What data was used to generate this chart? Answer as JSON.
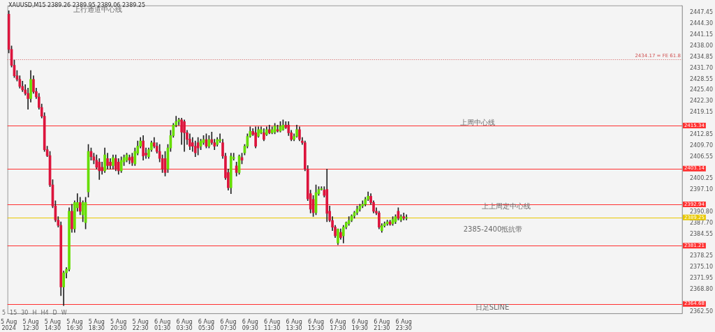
{
  "chart_data": {
    "type": "candlestick",
    "categories": [
      "5 Aug 2024",
      null,
      null,
      null,
      null,
      null,
      null,
      null,
      "5 Aug 12:30",
      null,
      null,
      null,
      null,
      null,
      null,
      null,
      "5 Aug 14:30",
      null,
      null,
      null,
      null,
      null,
      null,
      null,
      "5 Aug 16:30",
      null,
      null,
      null,
      null,
      null,
      null,
      null,
      "5 Aug 18:30",
      null,
      null,
      null,
      null,
      null,
      null,
      null,
      "5 Aug 20:30",
      null,
      null,
      null,
      null,
      null,
      null,
      null,
      "5 Aug 22:30",
      null,
      null,
      null,
      null,
      null,
      null,
      null,
      "6 Aug 01:30",
      null,
      null,
      null,
      null,
      null,
      null,
      null,
      "6 Aug 03:30",
      null,
      null,
      null,
      null,
      null,
      null,
      null,
      "6 Aug 05:30",
      null,
      null,
      null,
      null,
      null,
      null,
      null,
      "6 Aug 07:30",
      null,
      null,
      null,
      null,
      null,
      null,
      null,
      "6 Aug 09:30",
      null,
      null,
      null,
      null,
      null,
      null,
      null,
      "6 Aug 11:30",
      null,
      null,
      null,
      null,
      null,
      null,
      null,
      "6 Aug 13:30",
      null,
      null,
      null,
      null,
      null,
      null,
      null,
      "6 Aug 15:30",
      null,
      null,
      null,
      null,
      null,
      null,
      null,
      "6 Aug 17:30",
      null,
      null,
      null,
      null,
      null,
      null,
      null,
      "6 Aug 19:30",
      null,
      null,
      null,
      null,
      null,
      null,
      null,
      "6 Aug 21:30",
      null,
      null,
      null,
      null,
      null,
      null,
      null,
      "6 Aug 23:30",
      null,
      null,
      null,
      null,
      null,
      null,
      null,
      null,
      null,
      null,
      null,
      null,
      null,
      null,
      null,
      null,
      null,
      null,
      null,
      null,
      null,
      null,
      null,
      null,
      null,
      null,
      null,
      null,
      null,
      null,
      null,
      null,
      null,
      null,
      null,
      null,
      null,
      null,
      null,
      null,
      null,
      null,
      null,
      null,
      null,
      null,
      null,
      null,
      null,
      null,
      null,
      null,
      null,
      null,
      null,
      null,
      null,
      null,
      null,
      null,
      null,
      null,
      null,
      null,
      null,
      null,
      null,
      null,
      null,
      null,
      null,
      null,
      null,
      null,
      null,
      null,
      null,
      null,
      null,
      null,
      null,
      null,
      null,
      null,
      null,
      null,
      null,
      null,
      null,
      null,
      null,
      null,
      null,
      null,
      null,
      null,
      null,
      null,
      null,
      null,
      null
    ],
    "ohlc": [
      [
        2447,
        2448,
        2436,
        2437
      ],
      [
        2437,
        2438,
        2432,
        2432.5
      ],
      [
        2432.5,
        2434,
        2429,
        2429.5
      ],
      [
        2429.5,
        2431,
        2428,
        2428.5
      ],
      [
        2428.5,
        2429.5,
        2426,
        2426.5
      ],
      [
        2426.5,
        2428,
        2425,
        2425.5
      ],
      [
        2425.5,
        2427,
        2424,
        2424.5
      ],
      [
        2424.5,
        2426,
        2420,
        2423
      ],
      [
        2423,
        2431,
        2422,
        2428.5
      ],
      [
        2428.5,
        2429.5,
        2424.5,
        2425
      ],
      [
        2425,
        2426,
        2423,
        2423.5
      ],
      [
        2423.5,
        2424.5,
        2420,
        2420.5
      ],
      [
        2420.5,
        2421.5,
        2417.5,
        2418
      ],
      [
        2418,
        2419,
        2408,
        2408.5
      ],
      [
        2408.5,
        2409.5,
        2406.5,
        2406.8
      ],
      [
        2406.8,
        2408,
        2398,
        2398.5
      ],
      [
        2398.5,
        2400,
        2392,
        2392.5
      ],
      [
        2392.5,
        2394,
        2388,
        2388.5
      ],
      [
        2388.5,
        2389.5,
        2386.5,
        2387
      ],
      [
        2387,
        2388,
        2367,
        2369.5
      ],
      [
        2369.5,
        2374,
        2364.2,
        2373.5
      ],
      [
        2373.5,
        2375,
        2372,
        2374.5
      ],
      [
        2374.5,
        2392,
        2374,
        2391
      ],
      [
        2391,
        2393,
        2385,
        2386
      ],
      [
        2386,
        2394,
        2385,
        2393.5
      ],
      [
        2392,
        2396,
        2391,
        2393.5
      ],
      [
        2393.5,
        2395,
        2390,
        2391
      ],
      [
        2390,
        2394,
        2388,
        2393.5
      ],
      [
        2387.8,
        2395,
        2386,
        2393.5
      ],
      [
        2396.5,
        2410,
        2395,
        2408
      ],
      [
        2408,
        2409,
        2405.5,
        2406.5
      ],
      [
        2406.5,
        2407.5,
        2404.5,
        2405.5
      ],
      [
        2405.5,
        2407,
        2403,
        2403.5
      ],
      [
        2405,
        2406,
        2400,
        2402.5
      ],
      [
        2403.5,
        2405,
        2401.5,
        2402.5
      ],
      [
        2402.5,
        2409,
        2402,
        2407
      ],
      [
        2406,
        2407.5,
        2403,
        2404
      ],
      [
        2405,
        2406,
        2403,
        2404
      ],
      [
        2404,
        2407,
        2403,
        2406.3
      ],
      [
        2406,
        2407,
        2402.5,
        2403
      ],
      [
        2405,
        2406,
        2401.5,
        2402.5
      ],
      [
        2402.5,
        2406.5,
        2402,
        2405.5
      ],
      [
        2405,
        2407,
        2404,
        2406.3
      ],
      [
        2405.5,
        2407.5,
        2405,
        2407
      ],
      [
        2406.3,
        2407,
        2404.5,
        2405.5
      ],
      [
        2406.5,
        2407.5,
        2404,
        2404.8
      ],
      [
        2404.5,
        2409,
        2404,
        2408
      ],
      [
        2407.5,
        2411,
        2407,
        2409.5
      ],
      [
        2409.5,
        2412,
        2409,
        2411
      ],
      [
        2411,
        2412.5,
        2405.5,
        2406.7
      ],
      [
        2407.5,
        2409,
        2406,
        2407
      ],
      [
        2406.5,
        2409,
        2406,
        2408.5
      ],
      [
        2408.5,
        2411,
        2408,
        2410.5
      ],
      [
        2410.5,
        2412,
        2409,
        2409.5
      ],
      [
        2409.5,
        2410.5,
        2407.5,
        2408
      ],
      [
        2408,
        2410,
        2405,
        2406
      ],
      [
        2406,
        2407,
        2402,
        2403
      ],
      [
        2406,
        2408,
        2401,
        2402
      ],
      [
        2403,
        2410,
        2402,
        2409
      ],
      [
        2409,
        2414,
        2408,
        2412.5
      ],
      [
        2412.5,
        2416,
        2412,
        2415.5
      ],
      [
        2415.5,
        2418,
        2415,
        2416.5
      ],
      [
        2416.5,
        2417.5,
        2415.5,
        2417
      ],
      [
        2417,
        2417.5,
        2410,
        2413.5
      ],
      [
        2416.5,
        2417,
        2408,
        2413.3
      ],
      [
        2413.3,
        2414,
        2410,
        2411.4
      ],
      [
        2411.5,
        2413,
        2408.5,
        2409.5
      ],
      [
        2410.5,
        2412,
        2408,
        2409.5
      ],
      [
        2409.5,
        2411,
        2406.5,
        2407.6
      ],
      [
        2410.5,
        2412,
        2407,
        2409
      ],
      [
        2409.5,
        2411.5,
        2408.5,
        2411
      ],
      [
        2410.5,
        2412.5,
        2410,
        2411.4
      ],
      [
        2411.4,
        2413,
        2409,
        2409.5
      ],
      [
        2409.5,
        2412.5,
        2409,
        2411.4
      ],
      [
        2411.4,
        2413.5,
        2410,
        2410.5
      ],
      [
        2410.5,
        2411.5,
        2408.5,
        2409.5
      ],
      [
        2410,
        2412,
        2409.5,
        2411.4
      ],
      [
        2411,
        2413,
        2410.5,
        2411.4
      ],
      [
        2410.5,
        2411.5,
        2406,
        2406.7
      ],
      [
        2406.7,
        2407.5,
        2400,
        2400.5
      ],
      [
        2402,
        2403,
        2397,
        2397.7
      ],
      [
        2397.7,
        2407.5,
        2396,
        2406.7
      ],
      [
        2406,
        2407.5,
        2405.5,
        2406.3
      ],
      [
        2403.9,
        2405,
        2401,
        2402
      ],
      [
        2402,
        2407,
        2401.5,
        2406.7
      ],
      [
        2406.3,
        2407.5,
        2404.5,
        2405.5
      ],
      [
        2407.6,
        2410,
        2407,
        2409.5
      ],
      [
        2409.5,
        2413,
        2409,
        2412.3
      ],
      [
        2412.3,
        2415,
        2412,
        2413.7
      ],
      [
        2413.7,
        2414.5,
        2412.5,
        2412.8
      ],
      [
        2413.3,
        2415,
        2409,
        2409.5
      ],
      [
        2412.3,
        2415,
        2412,
        2414.2
      ],
      [
        2413.3,
        2415,
        2413,
        2414.2
      ],
      [
        2413.3,
        2414.5,
        2411,
        2411.4
      ],
      [
        2412.8,
        2415,
        2412.5,
        2414.2
      ],
      [
        2414.2,
        2415.5,
        2413,
        2413.3
      ],
      [
        2413.3,
        2415,
        2413,
        2414.2
      ],
      [
        2413.5,
        2416,
        2413,
        2415.2
      ],
      [
        2414.2,
        2415.5,
        2413.5,
        2413.8
      ],
      [
        2413.8,
        2416.5,
        2413.5,
        2415.2
      ],
      [
        2414.2,
        2417,
        2414,
        2415.5
      ],
      [
        2415.5,
        2416.5,
        2414.5,
        2414.8
      ],
      [
        2415.5,
        2416.5,
        2412.5,
        2413.3
      ],
      [
        2413.3,
        2414,
        2411,
        2411.4
      ],
      [
        2411.4,
        2413,
        2411,
        2412.3
      ],
      [
        2412.3,
        2415.5,
        2412,
        2414.2
      ],
      [
        2414.2,
        2415,
        2411,
        2411.4
      ],
      [
        2411,
        2412,
        2410,
        2410.5
      ],
      [
        2410.5,
        2411,
        2402.5,
        2403
      ],
      [
        2403,
        2404,
        2394,
        2394.5
      ],
      [
        2396,
        2397,
        2390.5,
        2391.6
      ],
      [
        2394.4,
        2395.5,
        2389.5,
        2390.6
      ],
      [
        2390.6,
        2398.5,
        2390,
        2396.3
      ],
      [
        2396,
        2398,
        2395.5,
        2397.2
      ],
      [
        2397.2,
        2398,
        2397,
        2397.4
      ],
      [
        2397,
        2398,
        2395,
        2395.5
      ],
      [
        2397.2,
        2403,
        2388,
        2390.4
      ],
      [
        2391,
        2392.5,
        2388,
        2388.4
      ],
      [
        2388.4,
        2389.5,
        2385.5,
        2386.5
      ],
      [
        2386.5,
        2387,
        2383.5,
        2384
      ],
      [
        2382,
        2386,
        2381.5,
        2385.9
      ],
      [
        2385,
        2386,
        2383,
        2383.5
      ],
      [
        2384,
        2387,
        2382,
        2386.5
      ],
      [
        2386.5,
        2388,
        2386,
        2387.8
      ],
      [
        2387.5,
        2389.5,
        2387,
        2388.4
      ],
      [
        2388.4,
        2390,
        2388,
        2389.7
      ],
      [
        2389.7,
        2391,
        2389,
        2390.6
      ],
      [
        2390.6,
        2392.5,
        2390,
        2391.6
      ],
      [
        2391.6,
        2393,
        2391,
        2392.5
      ],
      [
        2392.5,
        2394,
        2392,
        2393
      ],
      [
        2393,
        2395,
        2392.5,
        2394.4
      ],
      [
        2394.4,
        2396.5,
        2394,
        2395.3
      ],
      [
        2395.3,
        2396,
        2393,
        2393.5
      ],
      [
        2393.5,
        2394,
        2390.5,
        2391
      ],
      [
        2391,
        2392,
        2390,
        2390.5
      ],
      [
        2390.5,
        2391,
        2386,
        2386.5
      ],
      [
        2385.5,
        2387.5,
        2385,
        2386.9
      ],
      [
        2386.9,
        2388,
        2386.5,
        2387.5
      ],
      [
        2387.5,
        2388.5,
        2387,
        2388
      ],
      [
        2388,
        2388.5,
        2387,
        2387.3
      ],
      [
        2387.5,
        2389.5,
        2387,
        2388.7
      ],
      [
        2388,
        2390,
        2387.5,
        2389.5
      ],
      [
        2391,
        2392,
        2388.5,
        2389
      ],
      [
        2388.5,
        2390,
        2388,
        2389.5
      ],
      [
        2389.5,
        2390.5,
        2388.5,
        2389
      ],
      [
        2389,
        2390,
        2388.5,
        2389.25
      ],
      null,
      null,
      null,
      null,
      null,
      null,
      null,
      null,
      null,
      null,
      null,
      null,
      null,
      null,
      null,
      null,
      null,
      null,
      null,
      null,
      null,
      null,
      null,
      null,
      null,
      null,
      null,
      null,
      null,
      null,
      null,
      null,
      null,
      null,
      null,
      null,
      null,
      null,
      null,
      null,
      null,
      null,
      null,
      null,
      null,
      null,
      null,
      null,
      null,
      null,
      null,
      null,
      null,
      null,
      null,
      null,
      null,
      null,
      null,
      null,
      null,
      null,
      null,
      null,
      null,
      null,
      null,
      null,
      null,
      null,
      null,
      null,
      null,
      null,
      null,
      null,
      null,
      null,
      null,
      null,
      null,
      null,
      null,
      null,
      null,
      null,
      null,
      null,
      null,
      null,
      null,
      null,
      null,
      null,
      null,
      null,
      null,
      null,
      null,
      null
    ],
    "ylim": [
      2362.0,
      2449.5
    ],
    "yticks": [
      {
        "value": 2447.45,
        "label": "2447.45"
      },
      {
        "value": 2444.3,
        "label": "2444.30"
      },
      {
        "value": 2441.15,
        "label": "2441.15"
      },
      {
        "value": 2438,
        "label": "2438.00"
      },
      {
        "value": 2434.85,
        "label": "2434.85"
      },
      {
        "value": 2431.7,
        "label": "2431.70"
      },
      {
        "value": 2428.55,
        "label": "2428.55"
      },
      {
        "value": 2425.4,
        "label": "2425.40"
      },
      {
        "value": 2422.3,
        "label": "2422.30"
      },
      {
        "value": 2419.15,
        "label": "2419.15"
      },
      {
        "value": 2412.85,
        "label": "2412.85"
      },
      {
        "value": 2409.7,
        "label": "2409.70"
      },
      {
        "value": 2406.55,
        "label": "2406.55"
      },
      {
        "value": 2400.25,
        "label": "2400.25"
      },
      {
        "value": 2397.1,
        "label": "2397.10"
      },
      {
        "value": 2390.8,
        "label": "2390.80"
      },
      {
        "value": 2387.7,
        "label": "2387.70"
      },
      {
        "value": 2384.55,
        "label": "2384.55"
      },
      {
        "value": 2378.25,
        "label": "2378.25"
      },
      {
        "value": 2375.1,
        "label": "2375.10"
      },
      {
        "value": 2371.95,
        "label": "2371.95"
      },
      {
        "value": 2368.8,
        "label": "2368.80"
      },
      {
        "value": 2362.5,
        "label": "2362.50"
      }
    ],
    "ref_lines": [
      {
        "axis": "y",
        "value": 2434.17,
        "label": "2434.17 = FE 61.8",
        "color": "#d05050",
        "line_style": "dotted"
      },
      {
        "axis": "y",
        "value": 2415.34,
        "label": "2415.34",
        "color": "#ff3030"
      },
      {
        "axis": "y",
        "value": 2403.14,
        "label": "2403.14",
        "color": "#ff3030"
      },
      {
        "axis": "y",
        "value": 2392.94,
        "label": "2392.94",
        "color": "#ff3030"
      },
      {
        "axis": "y",
        "value": 2389.25,
        "label": "2389.25",
        "color": "#e8c800"
      },
      {
        "axis": "y",
        "value": 2381.21,
        "label": "2381.21",
        "color": "#ff3030"
      },
      {
        "axis": "y",
        "value": 2364.68,
        "label": "2364.68",
        "color": "#ff3030"
      }
    ],
    "annotations": [
      "XAUUSD,M15 2389.26 2389.95 2389.06 2389.25",
      "上行通道中心线",
      "上周中心线",
      "上上周定中心线",
      "2385-2400抵抗带",
      "日足SLINE",
      "5 15 30 H H4 D W"
    ]
  }
}
